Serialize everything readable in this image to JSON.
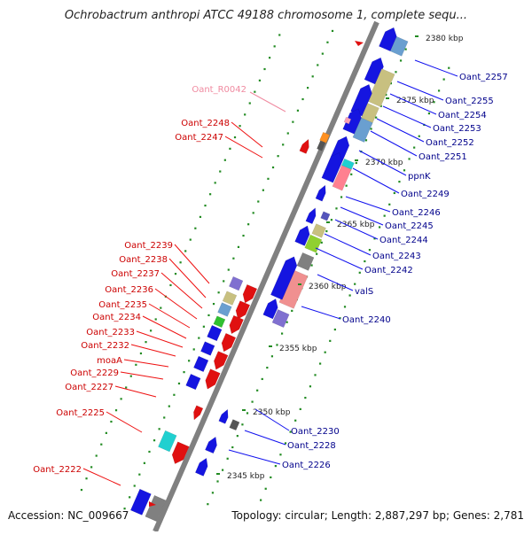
{
  "title": "Ochrobactrum anthropi ATCC 49188 chromosome 1, complete sequ...",
  "footer": {
    "accession": "Accession: NC_009667",
    "summary": "Topology: circular; Length: 2,887,297 bp; Genes: 2,781"
  },
  "colors": {
    "plus_label": "#00008b",
    "minus_label": "#cc0000",
    "rna_label": "#f08aa0",
    "axis": "#808080",
    "tick": "#228b22"
  },
  "scale_ticks": [
    "2380 kbp",
    "2375 kbp",
    "2370 kbp",
    "2365 kbp",
    "2360 kbp",
    "2355 kbp",
    "2350 kbp",
    "2345 kbp"
  ],
  "plus_strand_labels": [
    "Oant_2257",
    "Oant_2255",
    "Oant_2254",
    "Oant_2253",
    "Oant_2252",
    "Oant_2251",
    "ppnK",
    "Oant_2249",
    "Oant_2246",
    "Oant_2245",
    "Oant_2244",
    "Oant_2243",
    "Oant_2242",
    "valS",
    "Oant_2240",
    "Oant_2230",
    "Oant_2228",
    "Oant_2226"
  ],
  "minus_strand_labels": [
    "Oant_2248",
    "Oant_2247",
    "Oant_2239",
    "Oant_2238",
    "Oant_2237",
    "Oant_2236",
    "Oant_2235",
    "Oant_2234",
    "Oant_2233",
    "Oant_2232",
    "moaA",
    "Oant_2229",
    "Oant_2227",
    "Oant_2225",
    "Oant_2222"
  ],
  "rna_labels": [
    "Oant_R0042"
  ]
}
